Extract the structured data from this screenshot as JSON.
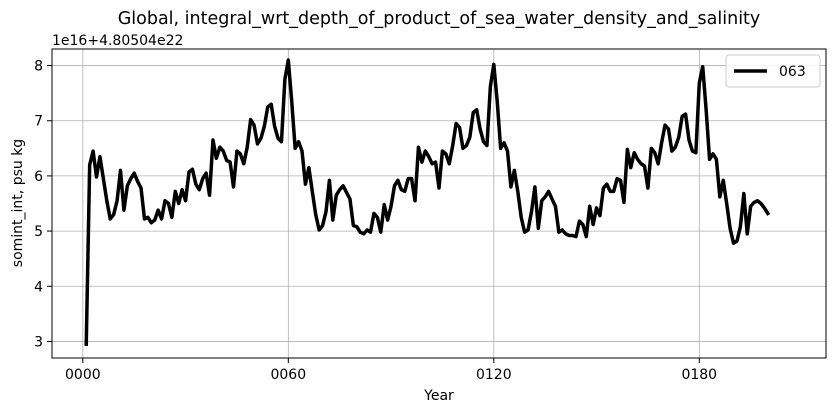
{
  "chart_data": {
    "type": "line",
    "title": "Global, integral_wrt_depth_of_product_of_sea_water_density_and_salinity",
    "offset_text": "1e16+4.80504e22",
    "xlabel": "Year",
    "ylabel": "somint_int, psu kg",
    "xlim": [
      -9,
      217
    ],
    "ylim": [
      2.7,
      8.3
    ],
    "x_ticks": [
      {
        "value": 0,
        "label": "0000"
      },
      {
        "value": 60,
        "label": "0060"
      },
      {
        "value": 120,
        "label": "0120"
      },
      {
        "value": 180,
        "label": "0180"
      }
    ],
    "y_ticks": [
      {
        "value": 3,
        "label": "3"
      },
      {
        "value": 4,
        "label": "4"
      },
      {
        "value": 5,
        "label": "5"
      },
      {
        "value": 6,
        "label": "6"
      },
      {
        "value": 7,
        "label": "7"
      },
      {
        "value": 8,
        "label": "8"
      }
    ],
    "grid": true,
    "legend_position": "top-right",
    "series": [
      {
        "name": "063",
        "color": "#000000",
        "x": [
          1,
          2,
          3,
          4,
          5,
          6,
          7,
          8,
          9,
          10,
          11,
          12,
          13,
          14,
          15,
          16,
          17,
          18,
          19,
          20,
          21,
          22,
          23,
          24,
          25,
          26,
          27,
          28,
          29,
          30,
          31,
          32,
          33,
          34,
          35,
          36,
          37,
          38,
          39,
          40,
          41,
          42,
          43,
          44,
          45,
          46,
          47,
          48,
          49,
          50,
          51,
          52,
          53,
          54,
          55,
          56,
          57,
          58,
          59,
          60,
          61,
          62,
          63,
          64,
          65,
          66,
          67,
          68,
          69,
          70,
          71,
          72,
          73,
          74,
          75,
          76,
          77,
          78,
          79,
          80,
          81,
          82,
          83,
          84,
          85,
          86,
          87,
          88,
          89,
          90,
          91,
          92,
          93,
          94,
          95,
          96,
          97,
          98,
          99,
          100,
          101,
          102,
          103,
          104,
          105,
          106,
          107,
          108,
          109,
          110,
          111,
          112,
          113,
          114,
          115,
          116,
          117,
          118,
          119,
          120,
          121,
          122,
          123,
          124,
          125,
          126,
          127,
          128,
          129,
          130,
          131,
          132,
          133,
          134,
          135,
          136,
          137,
          138,
          139,
          140,
          141,
          142,
          143,
          144,
          145,
          146,
          147,
          148,
          149,
          150,
          151,
          152,
          153,
          154,
          155,
          156,
          157,
          158,
          159,
          160,
          161,
          162,
          163,
          164,
          165,
          166,
          167,
          168,
          169,
          170,
          171,
          172,
          173,
          174,
          175,
          176,
          177,
          178,
          179,
          180,
          181,
          182,
          183,
          184,
          185,
          186,
          187,
          188,
          189,
          190,
          191,
          192,
          193,
          194,
          195,
          196,
          197,
          198,
          199,
          200
        ],
        "values": [
          2.95,
          6.2,
          6.45,
          5.98,
          6.35,
          5.95,
          5.55,
          5.22,
          5.3,
          5.55,
          6.1,
          5.38,
          5.82,
          5.95,
          6.05,
          5.9,
          5.78,
          5.22,
          5.25,
          5.15,
          5.2,
          5.38,
          5.22,
          5.55,
          5.5,
          5.25,
          5.72,
          5.5,
          5.75,
          5.55,
          6.07,
          6.12,
          5.85,
          5.75,
          5.95,
          6.05,
          5.65,
          6.65,
          6.32,
          6.52,
          6.45,
          6.28,
          6.25,
          5.8,
          6.45,
          6.4,
          6.22,
          6.52,
          7.02,
          6.92,
          6.58,
          6.68,
          6.9,
          7.25,
          7.3,
          6.9,
          6.68,
          6.62,
          7.75,
          8.1,
          7.35,
          6.5,
          6.62,
          6.45,
          5.85,
          6.15,
          5.72,
          5.3,
          5.02,
          5.1,
          5.35,
          5.92,
          5.2,
          5.65,
          5.75,
          5.82,
          5.7,
          5.58,
          5.1,
          5.08,
          4.98,
          4.95,
          5.02,
          4.98,
          5.32,
          5.25,
          4.98,
          5.48,
          5.2,
          5.45,
          5.82,
          5.92,
          5.75,
          5.72,
          5.95,
          5.95,
          5.55,
          6.52,
          6.25,
          6.45,
          6.35,
          6.22,
          6.25,
          5.78,
          6.45,
          6.4,
          6.22,
          6.55,
          6.95,
          6.88,
          6.5,
          6.55,
          6.7,
          7.15,
          7.2,
          6.85,
          6.62,
          6.55,
          7.62,
          8.02,
          7.35,
          6.5,
          6.6,
          6.45,
          5.8,
          6.1,
          5.72,
          5.25,
          4.98,
          5.02,
          5.35,
          5.8,
          5.05,
          5.55,
          5.62,
          5.72,
          5.58,
          5.45,
          4.98,
          5.02,
          4.95,
          4.92,
          4.92,
          4.9,
          5.18,
          5.12,
          4.9,
          5.45,
          5.12,
          5.42,
          5.28,
          5.78,
          5.85,
          5.72,
          5.72,
          5.95,
          5.92,
          5.52,
          6.48,
          6.15,
          6.42,
          6.3,
          6.22,
          6.18,
          5.78,
          6.5,
          6.42,
          6.22,
          6.6,
          6.92,
          6.85,
          6.45,
          6.52,
          6.7,
          7.08,
          7.12,
          6.65,
          6.45,
          6.42,
          7.68,
          7.98,
          7.2,
          6.3,
          6.4,
          6.3,
          5.62,
          5.92,
          5.5,
          5.05,
          4.78,
          4.82,
          5.08,
          5.68,
          4.95,
          5.45,
          5.52,
          5.55,
          5.5,
          5.42,
          5.32
        ]
      }
    ]
  }
}
